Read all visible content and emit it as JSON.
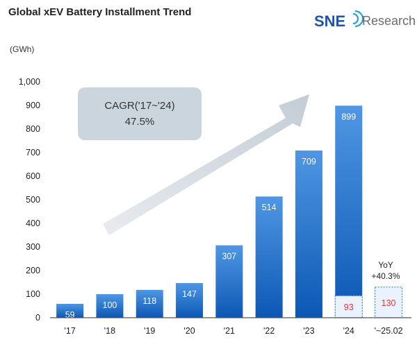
{
  "header": {
    "title": "Global xEV Battery Installment Trend",
    "logo": {
      "mark": "SNE",
      "word": "Research"
    }
  },
  "chart_data": {
    "type": "bar",
    "title": "Global xEV Battery Installment Trend",
    "ylabel": "(GWh)",
    "xlabel": "",
    "ylim": [
      0,
      1000
    ],
    "yticks": [
      "0",
      "100",
      "200",
      "300",
      "400",
      "500",
      "600",
      "700",
      "800",
      "900",
      "1,000"
    ],
    "grid": false,
    "categories": [
      "'17",
      "'18",
      "'19",
      "'20",
      "'21",
      "'22",
      "'23",
      "'24",
      "'~25.02"
    ],
    "values": [
      59,
      100,
      118,
      147,
      307,
      514,
      709,
      899,
      null
    ],
    "highlight_values": [
      null,
      null,
      null,
      null,
      null,
      null,
      null,
      93,
      130
    ],
    "annotations": {
      "cagr_line1": "CAGR('17~'24)",
      "cagr_line2": "47.5%",
      "yoy_line1": "YoY",
      "yoy_line2": "+40.3%"
    },
    "colors": {
      "bar_top": "#4f97e3",
      "bar_bottom": "#0c57b4",
      "highlight_fill": "#eaf3fd",
      "highlight_border": "#3d7fd0",
      "highlight_text": "#e8343c",
      "logo_blue": "#1e55a8"
    }
  }
}
